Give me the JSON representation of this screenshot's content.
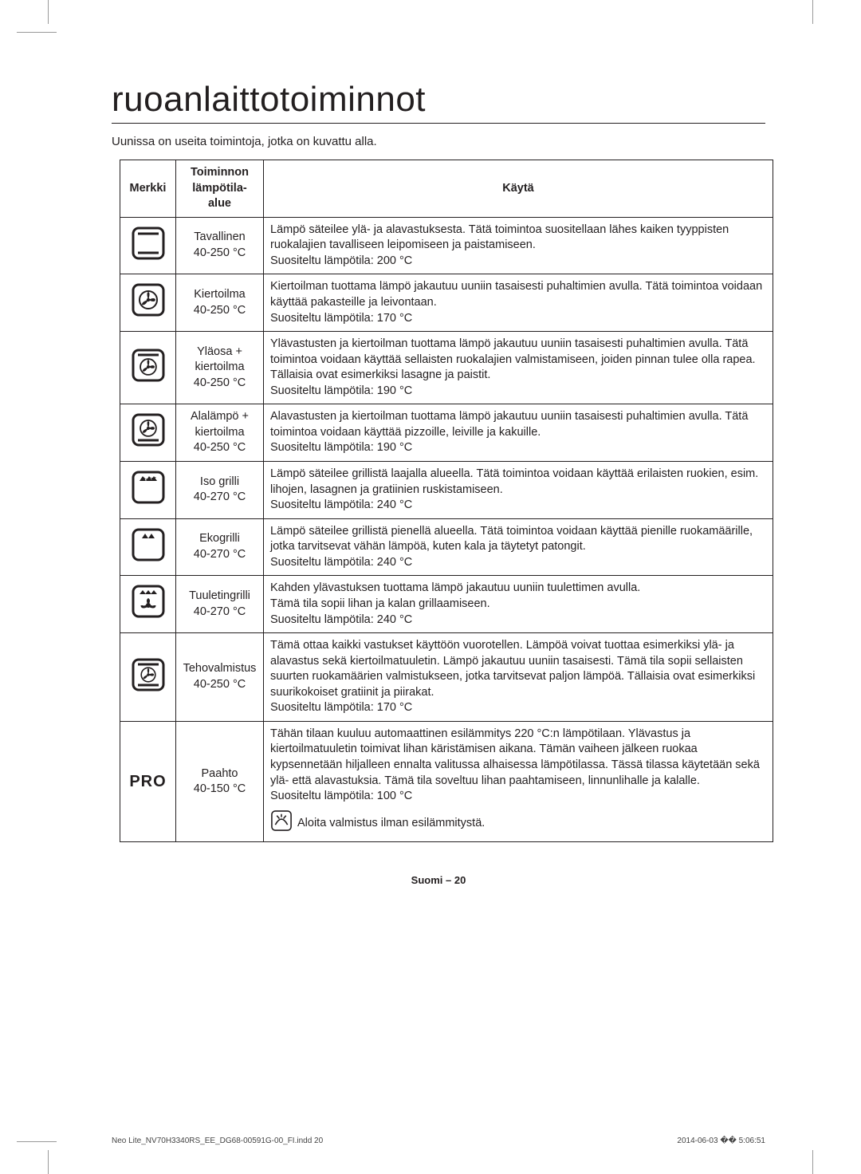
{
  "page": {
    "title": "ruoanlaittotoiminnot",
    "intro": "Uunissa on useita toimintoja, jotka on kuvattu alla.",
    "footer": "Suomi – 20",
    "print_left": "Neo Lite_NV70H3340RS_EE_DG68-00591G-00_FI.indd   20",
    "print_right": "2014-06-03   �� 5:06:51"
  },
  "table": {
    "headers": {
      "col1": "Merkki",
      "col2": "Toiminnon lämpötila-alue",
      "col3": "Käytä"
    },
    "rows": [
      {
        "icon": "conventional",
        "name": "Tavallinen\n40-250 °C",
        "desc": "Lämpö säteilee ylä- ja alavastuksesta. Tätä toimintoa suositellaan lähes kaiken tyyppisten ruokalajien tavalliseen leipomiseen ja paistamiseen.\nSuositeltu lämpötila: 200 °C"
      },
      {
        "icon": "convection",
        "name": "Kiertoilma\n40-250 °C",
        "desc": "Kiertoilman tuottama lämpö jakautuu uuniin tasaisesti puhaltimien avulla. Tätä toimintoa voidaan käyttää pakasteille ja leivontaan.\nSuositeltu lämpötila: 170 °C"
      },
      {
        "icon": "top-convection",
        "name": "Yläosa + kiertoilma\n40-250 °C",
        "desc": "Ylävastusten ja kiertoilman tuottama lämpö jakautuu uuniin tasaisesti puhaltimien avulla. Tätä toimintoa voidaan käyttää sellaisten ruokalajien valmistamiseen, joiden pinnan tulee olla rapea. Tällaisia ovat esimerkiksi lasagne ja paistit.\nSuositeltu lämpötila: 190 °C"
      },
      {
        "icon": "bottom-convection",
        "name": "Alalämpö + kiertoilma\n40-250 °C",
        "desc": "Alavastusten ja kiertoilman tuottama lämpö jakautuu uuniin tasaisesti puhaltimien avulla. Tätä toimintoa voidaan käyttää pizzoille, leiville ja kakuille.\nSuositeltu lämpötila: 190 °C"
      },
      {
        "icon": "large-grill",
        "name": "Iso grilli\n40-270 °C",
        "desc": "Lämpö säteilee grillistä laajalla alueella. Tätä toimintoa voidaan käyttää erilaisten ruokien, esim. lihojen, lasagnen ja gratiinien ruskistamiseen.\nSuositeltu lämpötila: 240 °C"
      },
      {
        "icon": "eco-grill",
        "name": "Ekogrilli\n40-270 °C",
        "desc": "Lämpö säteilee grillistä pienellä alueella. Tätä toimintoa voidaan käyttää pienille ruokamäärille, jotka tarvitsevat vähän lämpöä, kuten kala ja täytetyt patongit.\nSuositeltu lämpötila: 240 °C"
      },
      {
        "icon": "fan-grill",
        "name": "Tuuletingrilli\n40-270 °C",
        "desc": "Kahden ylävastuksen tuottama lämpö jakautuu uuniin tuulettimen avulla.\nTämä tila sopii lihan ja kalan grillaamiseen.\nSuositeltu lämpötila: 240 °C"
      },
      {
        "icon": "intensive",
        "name": "Tehovalmistus\n40-250 °C",
        "desc": "Tämä ottaa kaikki vastukset käyttöön vuorotellen. Lämpöä voivat tuottaa esimerkiksi ylä- ja alavastus sekä kiertoilmatuuletin. Lämpö jakautuu uuniin tasaisesti. Tämä tila sopii sellaisten suurten ruokamäärien valmistukseen, jotka tarvitsevat paljon lämpöä. Tällaisia ovat esimerkiksi suurikokoiset gratiinit ja piirakat.\nSuositeltu lämpötila: 170 °C"
      },
      {
        "icon": "pro",
        "name": "Paahto\n40-150 °C",
        "desc": "Tähän tilaan kuuluu automaattinen esilämmitys 220 °C:n lämpötilaan. Ylävastus ja kiertoilmatuuletin toimivat lihan käristämisen aikana. Tämän vaiheen jälkeen ruokaa kypsennetään hiljalleen ennalta valitussa alhaisessa lämpötilassa. Tässä tilassa käytetään sekä ylä- että alavastuksia. Tämä tila soveltuu lihan paahtamiseen, linnunlihalle ja kalalle.\nSuositeltu lämpötila: 100 °C",
        "note_icon": true,
        "note": "Aloita valmistus ilman esilämmitystä."
      }
    ]
  },
  "colors": {
    "text": "#231f20",
    "border": "#231f20",
    "bg": "#ffffff"
  }
}
